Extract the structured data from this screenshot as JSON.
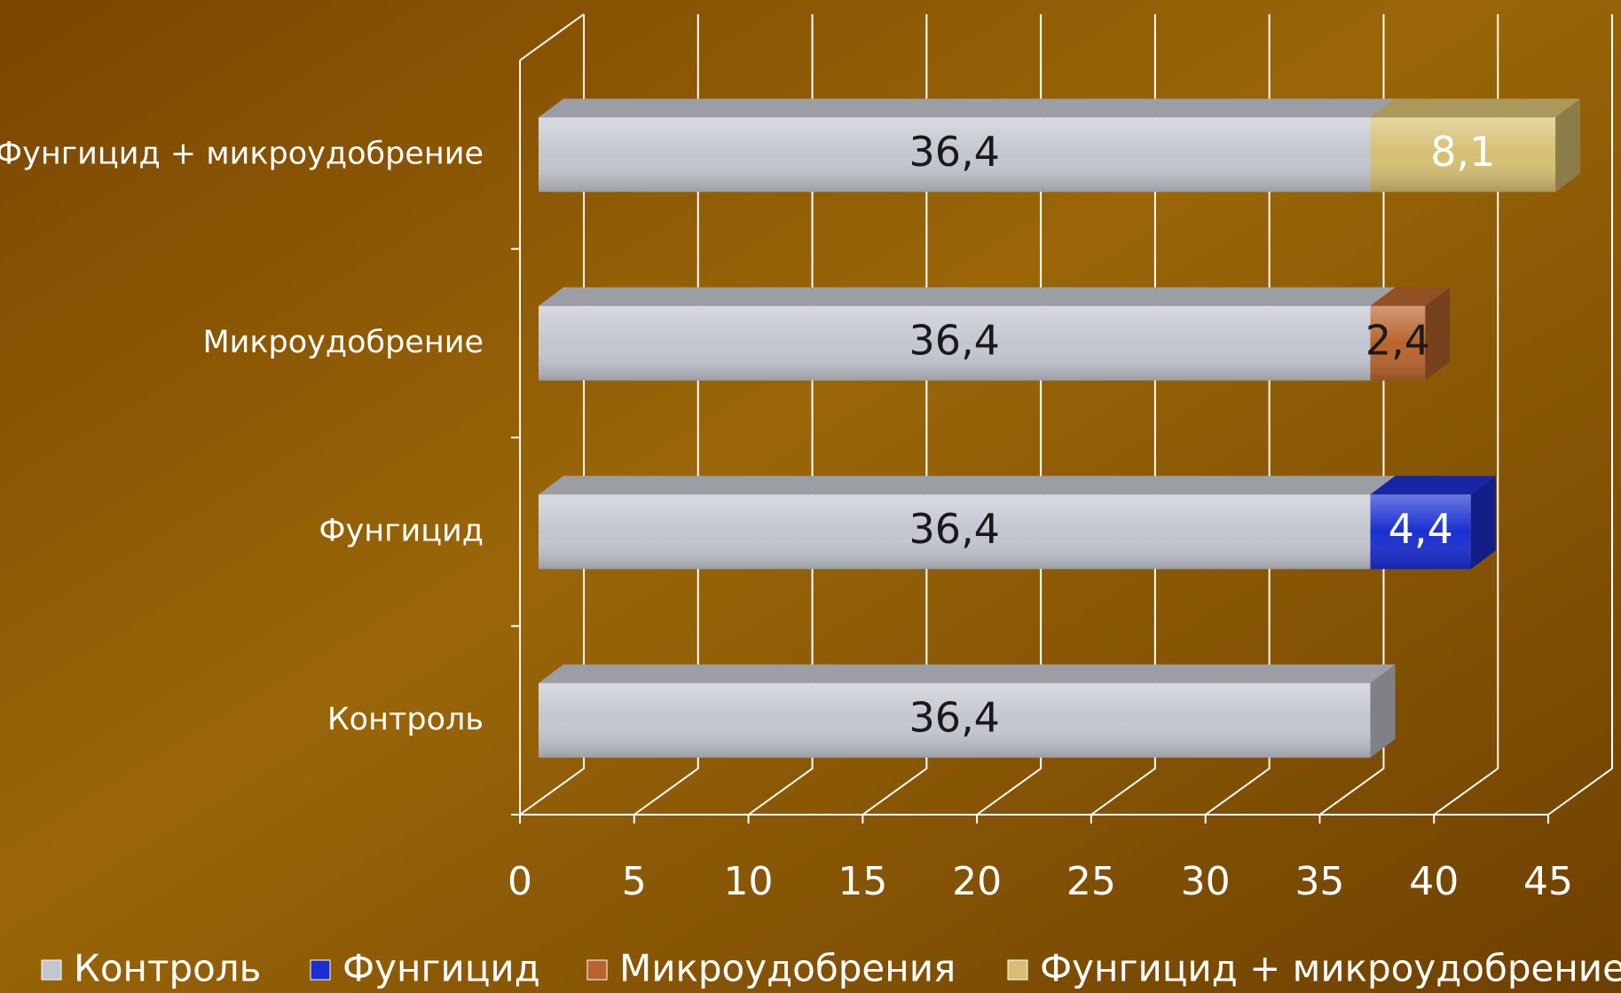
{
  "chart_data": {
    "type": "bar",
    "orientation": "horizontal",
    "stacked": true,
    "categories": [
      "Контроль",
      "Фунгицид",
      "Микроудобрение",
      "Фунгицид + микроудобрение"
    ],
    "series": [
      {
        "name": "Контроль",
        "color": "#c3c6cf",
        "values": [
          36.4,
          36.4,
          36.4,
          36.4
        ],
        "value_labels": [
          "36,4",
          "36,4",
          "36,4",
          "36,4"
        ]
      },
      {
        "name": "Фунгицид",
        "color": "#1a2fd0",
        "values": [
          null,
          4.4,
          null,
          null
        ],
        "value_labels": [
          null,
          "4,4",
          null,
          null
        ]
      },
      {
        "name": "Микроудобрения",
        "color": "#b8642c",
        "values": [
          null,
          null,
          2.4,
          null
        ],
        "value_labels": [
          null,
          null,
          "2,4",
          null
        ]
      },
      {
        "name": "Фунгицид + микроудобрение",
        "color": "#d6bf72",
        "values": [
          null,
          null,
          null,
          8.1
        ],
        "value_labels": [
          null,
          null,
          null,
          "8,1"
        ]
      }
    ],
    "xlim": [
      0,
      45
    ],
    "xticks": [
      0,
      5,
      10,
      15,
      20,
      25,
      30,
      35,
      40,
      45
    ],
    "grid": true
  }
}
